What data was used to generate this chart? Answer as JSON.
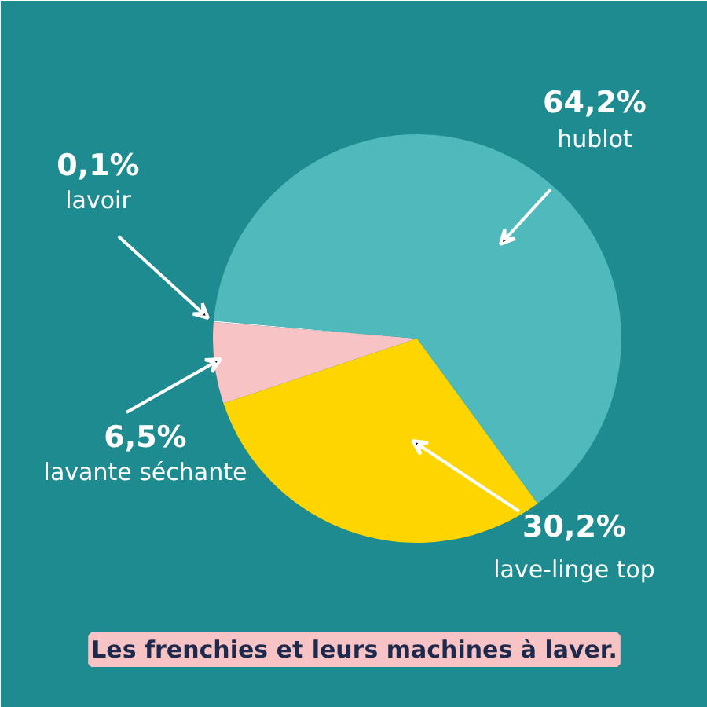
{
  "chart_data": {
    "type": "pie",
    "title": "Les frenchies et leurs machines à laver.",
    "categories": [
      "lavoir",
      "lavante séchante",
      "lave-linge top",
      "hublot"
    ],
    "values": [
      0.1,
      6.5,
      30.2,
      64.2
    ],
    "colors": [
      "#f0f0f0",
      "#f7c3c4",
      "#ffd500",
      "#4fb9bc"
    ],
    "value_labels": [
      "0,1%",
      "6,5%",
      "30,2%",
      "64,2%"
    ]
  }
}
